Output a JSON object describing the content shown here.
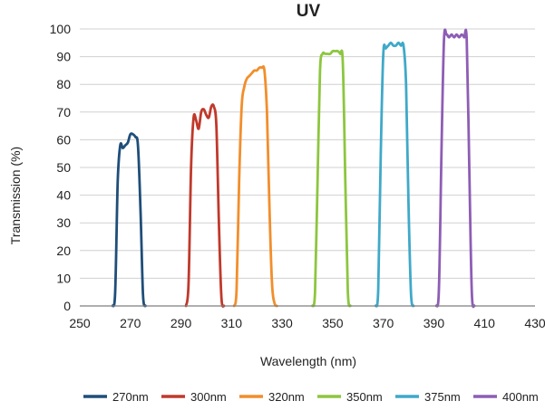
{
  "chart_data": {
    "type": "line",
    "title": "UV",
    "xlabel": "Wavelength (nm)",
    "ylabel": "Transmission (%)",
    "xlim": [
      250,
      430
    ],
    "ylim": [
      0,
      100
    ],
    "x_ticks": [
      250,
      270,
      290,
      310,
      330,
      350,
      370,
      390,
      410,
      430
    ],
    "y_ticks": [
      0,
      10,
      20,
      30,
      40,
      50,
      60,
      70,
      80,
      90,
      100
    ],
    "grid": "horizontal",
    "legend_position": "bottom",
    "series": [
      {
        "name": "270nm",
        "color": "#1f4e79",
        "x": [
          263,
          264,
          265,
          266,
          267,
          268,
          269,
          270,
          271,
          272,
          273,
          274,
          275,
          276
        ],
        "y": [
          0,
          5,
          45,
          58,
          57,
          58,
          59,
          62,
          62,
          61,
          58,
          35,
          4,
          0
        ]
      },
      {
        "name": "300nm",
        "color": "#c0392b",
        "x": [
          292,
          293,
          294,
          295,
          296,
          297,
          298,
          299,
          300,
          301,
          302,
          303,
          304,
          305,
          306,
          307
        ],
        "y": [
          0,
          8,
          50,
          68,
          67,
          64,
          70,
          71,
          69,
          68,
          72,
          72,
          65,
          30,
          3,
          0
        ]
      },
      {
        "name": "320nm",
        "color": "#f28e2b",
        "x": [
          311,
          312,
          313,
          314,
          315,
          316,
          317,
          318,
          319,
          320,
          321,
          322,
          323,
          324,
          325,
          326,
          327,
          328
        ],
        "y": [
          0,
          6,
          45,
          72,
          79,
          82,
          83,
          84,
          85,
          85,
          86,
          86,
          85,
          70,
          35,
          8,
          1,
          0
        ]
      },
      {
        "name": "350nm",
        "color": "#8dc63f",
        "x": [
          342,
          343,
          344,
          345,
          346,
          347,
          348,
          349,
          350,
          351,
          352,
          353,
          354,
          355,
          356,
          357
        ],
        "y": [
          0,
          5,
          45,
          85,
          91,
          91,
          91,
          91,
          92,
          92,
          92,
          91,
          88,
          45,
          5,
          0
        ]
      },
      {
        "name": "375nm",
        "color": "#3fa9c9",
        "x": [
          367,
          368,
          369,
          370,
          371,
          372,
          373,
          374,
          375,
          376,
          377,
          378,
          379,
          380,
          381,
          382
        ],
        "y": [
          0,
          6,
          55,
          91,
          93,
          94,
          95,
          94,
          94,
          95,
          94,
          94,
          80,
          35,
          4,
          0
        ]
      },
      {
        "name": "400nm",
        "color": "#8e5db5",
        "x": [
          391,
          392,
          393,
          394,
          395,
          396,
          397,
          398,
          399,
          400,
          401,
          402,
          403,
          404,
          405,
          406
        ],
        "y": [
          0,
          6,
          55,
          96,
          98,
          97,
          98,
          97,
          98,
          97,
          98,
          97,
          96,
          50,
          5,
          0
        ]
      }
    ]
  }
}
